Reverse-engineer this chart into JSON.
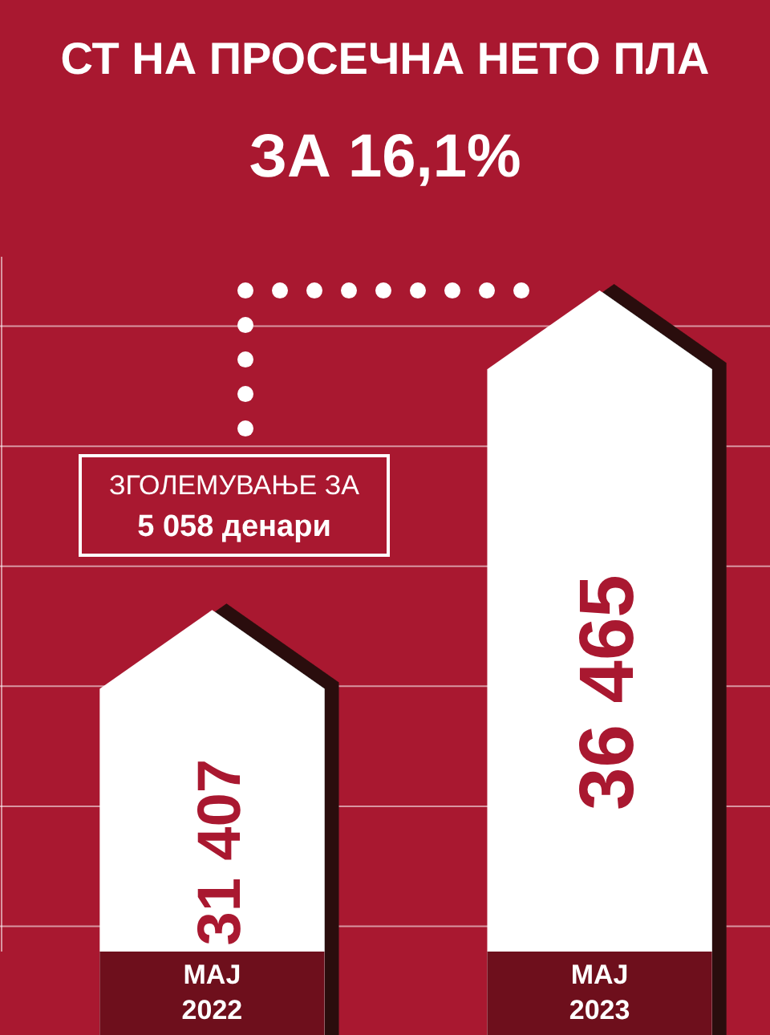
{
  "chart_data": {
    "type": "bar",
    "title": "СТ НА ПРОСЕЧНА НЕТО ПЛА",
    "subtitle": "ЗА 16,1%",
    "categories": [
      "МАЈ 2022",
      "МАЈ 2023"
    ],
    "values": [
      31407,
      36465
    ],
    "value_labels": [
      "31 407",
      "36 465"
    ],
    "color": "#ffffff",
    "ylim": [
      26000,
      37000
    ],
    "yticks": [
      {
        "value": 26400,
        "label": null
      },
      {
        "value": 28300,
        "label": null
      },
      {
        "value": 30200,
        "label": null
      },
      {
        "value": 32100,
        "label": null
      },
      {
        "value": 34000,
        "label": null
      },
      {
        "value": 35900,
        "label": null
      }
    ],
    "grid": "y",
    "ref_lines": [
      {
        "axis": "y",
        "value": 36465,
        "color": "#ffffff",
        "line_style": "dotted"
      }
    ],
    "annotations": [
      "ЗГОЛЕМУВАЊЕ ЗА 5 058 денари"
    ]
  }
}
